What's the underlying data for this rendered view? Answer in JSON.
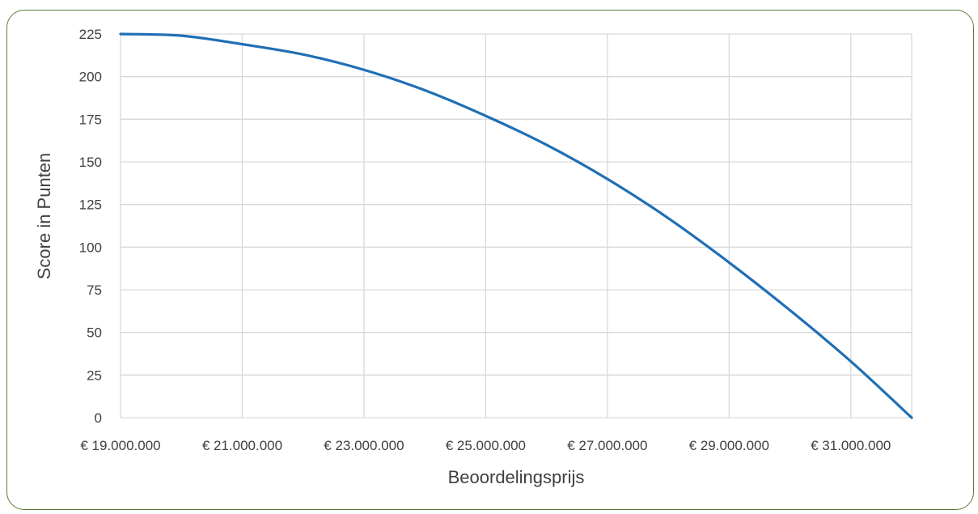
{
  "chart_data": {
    "type": "line",
    "title": "",
    "xlabel": "Beoordelingsprijs",
    "ylabel": "Score in Punten",
    "xlim": [
      19000000,
      32000000
    ],
    "ylim": [
      0,
      225
    ],
    "x_ticks": [
      19000000,
      21000000,
      23000000,
      25000000,
      27000000,
      29000000,
      31000000
    ],
    "x_tick_labels": [
      "€ 19.000.000",
      "€ 21.000.000",
      "€ 23.000.000",
      "€ 25.000.000",
      "€ 27.000.000",
      "€ 29.000.000",
      "€ 31.000.000"
    ],
    "y_ticks": [
      0,
      25,
      50,
      75,
      100,
      125,
      150,
      175,
      200,
      225
    ],
    "y_tick_labels": [
      "0",
      "25",
      "50",
      "75",
      "100",
      "125",
      "150",
      "175",
      "200",
      "225"
    ],
    "grid": true,
    "legend": "none",
    "series": [
      {
        "color": "#1f6fb5",
        "x": [
          19000000,
          20000000,
          21000000,
          22000000,
          23000000,
          24000000,
          25000000,
          26000000,
          27000000,
          28000000,
          29000000,
          30000000,
          31000000,
          32000000
        ],
        "y": [
          225,
          224,
          219,
          213,
          204,
          192,
          177,
          160,
          140,
          117,
          91,
          63,
          33,
          0
        ]
      }
    ]
  },
  "colors": {
    "frame_border": "#5a7d3a",
    "grid": "#d9d9d9",
    "text": "#404040",
    "line": "#1f6fb5"
  }
}
